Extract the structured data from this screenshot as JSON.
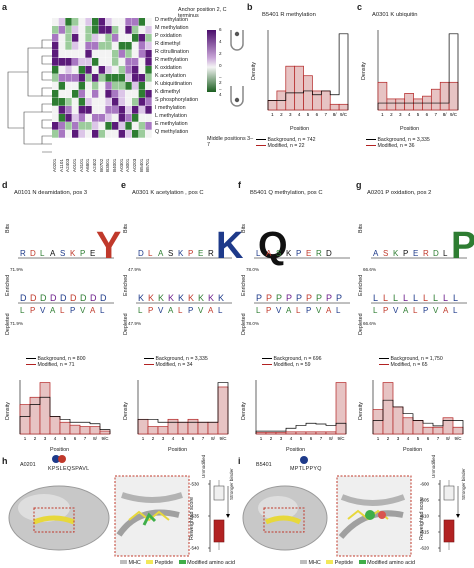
{
  "panel_letters": {
    "a": "a",
    "b": "b",
    "c": "c",
    "d": "d",
    "e": "e",
    "f": "f",
    "g": "g",
    "h": "h",
    "i": "i"
  },
  "heatmap": {
    "rows": [
      "D methylation",
      "M methylation",
      "P oxidation",
      "R dimethyl",
      "R citrullination",
      "R methylation",
      "K oxidation",
      "K acetylation",
      "K ubiquitination",
      "K dimethyl",
      "S phosphorylation",
      "I methylation",
      "L methylation",
      "E methylation",
      "Q methylation"
    ],
    "cols": [
      "A0201",
      "A1101",
      "A2403",
      "A0101",
      "A3101",
      "A6801",
      "A2402",
      "B0702",
      "B3501",
      "B4001",
      "A0301",
      "A3001",
      "A0203",
      "B5401",
      "B5701"
    ],
    "legend_title": "Anchor position 2, C terminus",
    "legend_bottom": "Middle positions 3–7",
    "scale_ticks": [
      "6",
      "4",
      "2",
      "0",
      "–2",
      "–4"
    ],
    "colors": {
      "purple": "#6a1b8a",
      "green": "#2e7d32"
    }
  },
  "panel_b": {
    "title": "B5401 R methylation",
    "ylabel": "Density",
    "xlabel": "Position",
    "legend": [
      {
        "label": "Background, n = 742"
      },
      {
        "label": "Modified, n = 22"
      }
    ]
  },
  "panel_c": {
    "title": "A0301 K ubiquitin",
    "ylabel": "Density",
    "xlabel": "Position",
    "legend": [
      {
        "label": "Background, n = 3,335"
      },
      {
        "label": "Modified, n = 36"
      }
    ]
  },
  "logos": [
    {
      "title": "A0101 N deamidation, pos 3",
      "pct_top": "71.9%",
      "pct_bot": "71.9%",
      "legend": [
        "Background, n = 800",
        "Modified, n = 71"
      ]
    },
    {
      "title": "A0301 K acetylation , pos C",
      "pct_top": "47.9%",
      "pct_bot": "47.9%",
      "legend": [
        "Background, n = 3,335",
        "Modified, n = 34"
      ]
    },
    {
      "title": "B5401 Q methylation, pos C",
      "pct_top": "78.0%",
      "pct_bot": "78.0%",
      "legend": [
        "Background, n = 696",
        "Modified, n = 59"
      ]
    },
    {
      "title": "A0201 P oxidation, pos 2",
      "pct_top": "66.6%",
      "pct_bot": "66.6%",
      "legend": [
        "Background, n = 1,750",
        "Modified, n = 65"
      ]
    }
  ],
  "axis_text": {
    "bits": "Bits",
    "enriched": "Enriched",
    "depleted": "Depleted",
    "density": "Density",
    "position": "Position",
    "ticks": [
      "1",
      "2",
      "3",
      "4",
      "5",
      "6",
      "7",
      "8/",
      "9/C"
    ],
    "sub": "C−1"
  },
  "panel_h": {
    "allele": "A0201",
    "peptide": "KPSLEQSPAVL",
    "ylabel": "Reweighted score",
    "top": "Unmodified",
    "bottom": "Modified",
    "arrow": "Stronger binder",
    "yticks": [
      "-530",
      "-535",
      "-540"
    ]
  },
  "panel_i": {
    "allele": "B5401",
    "peptide": "MPTLPPYQ",
    "ylabel": "Reweighted score",
    "top": "Unmodified",
    "bottom": "Modified",
    "arrow": "Stronger binder",
    "yticks": [
      "-600",
      "-605",
      "-610",
      "-615",
      "-620"
    ]
  },
  "structure_legend": [
    {
      "label": "MHC",
      "color": "#bdbdbd"
    },
    {
      "label": "Peptide",
      "color": "#f2e85a"
    },
    {
      "label": "Modified amino acid",
      "color": "#3fae49"
    }
  ],
  "chart_data": [
    {
      "type": "bar",
      "title": "B5401 R methylation",
      "categories": [
        "1",
        "2",
        "3",
        "4",
        "5",
        "6",
        "7",
        "8/",
        "9/C"
      ],
      "series": [
        {
          "name": "Background, n = 742",
          "values": [
            0.05,
            0.05,
            0.09,
            0.09,
            0.1,
            0.08,
            0.1,
            0.08,
            0.4
          ]
        },
        {
          "name": "Modified, n = 22",
          "values": [
            0.05,
            0.1,
            0.23,
            0.23,
            0.18,
            0.1,
            0.1,
            0.03,
            0.03
          ]
        }
      ],
      "xlabel": "Position",
      "ylabel": "Density"
    },
    {
      "type": "bar",
      "title": "A0301 K ubiquitin",
      "categories": [
        "1",
        "2",
        "3",
        "4",
        "5",
        "6",
        "7",
        "8/",
        "9/C"
      ],
      "series": [
        {
          "name": "Background, n = 3,335",
          "values": [
            0.05,
            0.05,
            0.05,
            0.05,
            0.05,
            0.05,
            0.05,
            0.05,
            0.55
          ]
        },
        {
          "name": "Modified, n = 36",
          "values": [
            0.2,
            0.08,
            0.08,
            0.12,
            0.08,
            0.1,
            0.15,
            0.2,
            0.2
          ]
        }
      ],
      "xlabel": "Position",
      "ylabel": "Density"
    },
    {
      "type": "bar",
      "title": "A0101 N deamidation, pos 3",
      "categories": [
        "1",
        "2",
        "3",
        "4",
        "5",
        "6",
        "7",
        "8/",
        "9/C"
      ],
      "series": [
        {
          "name": "Background, n = 800",
          "values": [
            0.12,
            0.2,
            0.25,
            0.12,
            0.1,
            0.08,
            0.08,
            0.07,
            0.03
          ]
        },
        {
          "name": "Modified, n = 71",
          "values": [
            0.2,
            0.25,
            0.35,
            0.12,
            0.08,
            0.06,
            0.05,
            0.05,
            0.02
          ]
        }
      ],
      "xlabel": "Position",
      "ylabel": "Density"
    },
    {
      "type": "bar",
      "title": "A0301 K acetylation , pos C",
      "categories": [
        "1",
        "2",
        "3",
        "4",
        "5",
        "6",
        "7",
        "8/",
        "9/C"
      ],
      "series": [
        {
          "name": "Background, n = 3,335",
          "values": [
            0.1,
            0.1,
            0.08,
            0.08,
            0.08,
            0.08,
            0.08,
            0.08,
            0.35
          ]
        },
        {
          "name": "Modified, n = 34",
          "values": [
            0.1,
            0.05,
            0.05,
            0.1,
            0.08,
            0.1,
            0.08,
            0.08,
            0.32
          ]
        }
      ],
      "xlabel": "Position",
      "ylabel": "Density"
    },
    {
      "type": "bar",
      "title": "B5401 Q methylation, pos C",
      "categories": [
        "1",
        "2",
        "3",
        "4",
        "5",
        "6",
        "7",
        "8/",
        "9/C"
      ],
      "series": [
        {
          "name": "Background, n = 696",
          "values": [
            0.04,
            0.04,
            0.04,
            0.08,
            0.12,
            0.15,
            0.14,
            0.12,
            0.15
          ]
        },
        {
          "name": "Modified, n = 59",
          "values": [
            0.02,
            0.02,
            0.02,
            0.03,
            0.03,
            0.03,
            0.03,
            0.03,
            0.72
          ]
        }
      ],
      "xlabel": "Position",
      "ylabel": "Density"
    },
    {
      "type": "bar",
      "title": "A0201 P oxidation, pos 2",
      "categories": [
        "1",
        "2",
        "3",
        "4",
        "5",
        "6",
        "7",
        "8/",
        "9/C"
      ],
      "series": [
        {
          "name": "Background, n = 1,750",
          "values": [
            0.1,
            0.25,
            0.2,
            0.15,
            0.1,
            0.08,
            0.06,
            0.1,
            0.1
          ]
        },
        {
          "name": "Modified, n = 65",
          "values": [
            0.18,
            0.38,
            0.2,
            0.12,
            0.1,
            0.05,
            0.05,
            0.12,
            0.05
          ]
        }
      ],
      "xlabel": "Position",
      "ylabel": "Density"
    }
  ]
}
